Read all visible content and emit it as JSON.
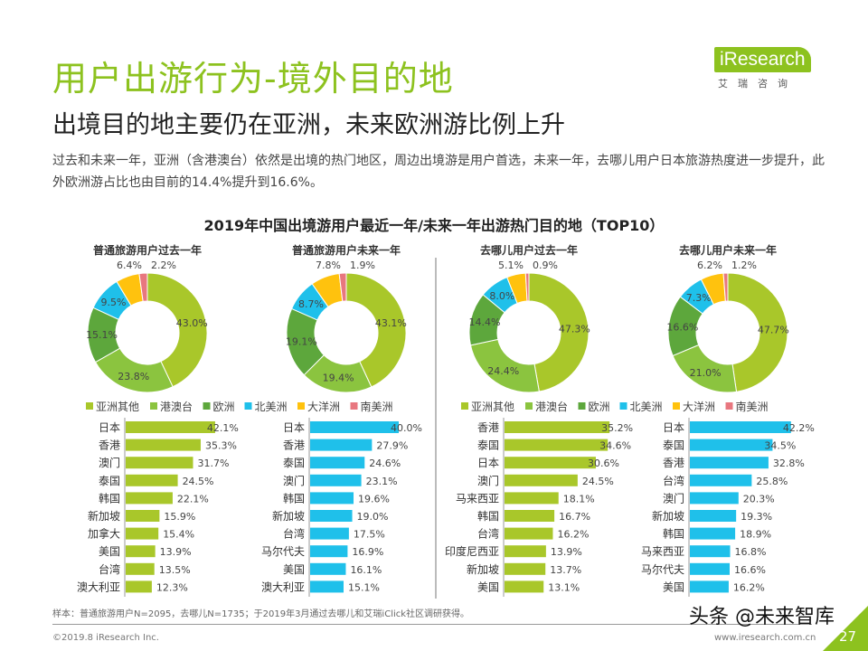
{
  "header": {
    "title": "用户出游行为-境外目的地",
    "subtitle": "出境目的地主要仍在亚洲，未来欧洲游比例上升",
    "description": "过去和未来一年，亚洲（含港澳台）依然是出境的热门地区，周边出境游是用户首选，未来一年，去哪儿用户日本旅游热度进一步提升，此外欧洲游占比也由目前的14.4%提升到16.6%。"
  },
  "logo": {
    "name": "iResearch",
    "sub": "艾瑞咨询"
  },
  "colors": {
    "亚洲其他": "#a9c72a",
    "港澳台": "#8bc43f",
    "欧洲": "#5da73c",
    "北美洲": "#1fc0ea",
    "大洋洲": "#ffc20e",
    "南美洲": "#e8777f",
    "bar_green": "#a9c72a",
    "bar_blue": "#1fc0ea"
  },
  "chart_data": [
    {
      "type": "pie",
      "style": "donut",
      "title": "普通旅游用户过去一年",
      "categories": [
        "亚洲其他",
        "港澳台",
        "欧洲",
        "北美洲",
        "大洋洲",
        "南美洲"
      ],
      "values": [
        43.0,
        23.8,
        15.1,
        9.5,
        6.4,
        2.2
      ],
      "labels": [
        "43.0%",
        "23.8%",
        "15.1%",
        "9.5%",
        "6.4%",
        "2.2%"
      ]
    },
    {
      "type": "pie",
      "style": "donut",
      "title": "普通旅游用户未来一年",
      "categories": [
        "亚洲其他",
        "港澳台",
        "欧洲",
        "北美洲",
        "大洋洲",
        "南美洲"
      ],
      "values": [
        43.1,
        19.4,
        19.1,
        8.7,
        7.8,
        1.9
      ],
      "labels": [
        "43.1%",
        "19.4%",
        "19.1%",
        "8.7%",
        "7.8%",
        "1.9%"
      ]
    },
    {
      "type": "pie",
      "style": "donut",
      "title": "去哪儿用户过去一年",
      "categories": [
        "亚洲其他",
        "港澳台",
        "欧洲",
        "北美洲",
        "大洋洲",
        "南美洲"
      ],
      "values": [
        47.3,
        24.4,
        14.4,
        8.0,
        5.1,
        0.9
      ],
      "labels": [
        "47.3%",
        "24.4%",
        "14.4%",
        "8.0%",
        "5.1%",
        "0.9%"
      ]
    },
    {
      "type": "pie",
      "style": "donut",
      "title": "去哪儿用户未来一年",
      "categories": [
        "亚洲其他",
        "港澳台",
        "欧洲",
        "北美洲",
        "大洋洲",
        "南美洲"
      ],
      "values": [
        47.7,
        21.0,
        16.6,
        7.3,
        6.2,
        1.2
      ],
      "labels": [
        "47.7%",
        "21.0%",
        "16.6%",
        "7.3%",
        "6.2%",
        "1.2%"
      ]
    },
    {
      "type": "bar",
      "orientation": "horizontal",
      "categories": [
        "日本",
        "香港",
        "澳门",
        "泰国",
        "韩国",
        "新加坡",
        "加拿大",
        "美国",
        "台湾",
        "澳大利亚"
      ],
      "values": [
        42.1,
        35.3,
        31.7,
        24.5,
        22.1,
        15.9,
        15.4,
        13.9,
        13.5,
        12.3
      ],
      "labels": [
        "42.1%",
        "35.3%",
        "31.7%",
        "24.5%",
        "22.1%",
        "15.9%",
        "15.4%",
        "13.9%",
        "13.5%",
        "12.3%"
      ],
      "color": "green"
    },
    {
      "type": "bar",
      "orientation": "horizontal",
      "categories": [
        "日本",
        "香港",
        "泰国",
        "澳门",
        "韩国",
        "新加坡",
        "台湾",
        "马尔代夫",
        "美国",
        "澳大利亚"
      ],
      "values": [
        40.0,
        27.9,
        24.6,
        23.1,
        19.6,
        19.0,
        17.5,
        16.9,
        16.1,
        15.1
      ],
      "labels": [
        "40.0%",
        "27.9%",
        "24.6%",
        "23.1%",
        "19.6%",
        "19.0%",
        "17.5%",
        "16.9%",
        "16.1%",
        "15.1%"
      ],
      "color": "blue"
    },
    {
      "type": "bar",
      "orientation": "horizontal",
      "categories": [
        "香港",
        "泰国",
        "日本",
        "澳门",
        "马来西亚",
        "韩国",
        "台湾",
        "印度尼西亚",
        "新加坡",
        "美国"
      ],
      "values": [
        35.2,
        34.6,
        30.6,
        24.5,
        18.1,
        16.7,
        16.2,
        13.9,
        13.7,
        13.1
      ],
      "labels": [
        "35.2%",
        "34.6%",
        "30.6%",
        "24.5%",
        "18.1%",
        "16.7%",
        "16.2%",
        "13.9%",
        "13.7%",
        "13.1%"
      ],
      "color": "green"
    },
    {
      "type": "bar",
      "orientation": "horizontal",
      "categories": [
        "日本",
        "泰国",
        "香港",
        "台湾",
        "澳门",
        "新加坡",
        "韩国",
        "马来西亚",
        "马尔代夫",
        "美国"
      ],
      "values": [
        42.2,
        34.5,
        32.8,
        25.8,
        20.3,
        19.3,
        18.9,
        16.8,
        16.6,
        16.2
      ],
      "labels": [
        "42.2%",
        "34.5%",
        "32.8%",
        "25.8%",
        "20.3%",
        "19.3%",
        "18.9%",
        "16.8%",
        "16.6%",
        "16.2%"
      ],
      "color": "blue"
    }
  ],
  "chart_title": "2019年中国出境游用户最近一年/未来一年出游热门目的地（TOP10）",
  "legend": [
    "亚洲其他",
    "港澳台",
    "欧洲",
    "北美洲",
    "大洋洲",
    "南美洲"
  ],
  "footer": {
    "note": "样本：普通旅游用户N=2095，去哪儿N=1735；于2019年3月通过去哪儿和艾瑞iClick社区调研获得。",
    "copyright": "©2019.8 iResearch Inc.",
    "site": "www.iresearch.com.cn",
    "page": "27",
    "watermark": "头条 @未来智库"
  }
}
